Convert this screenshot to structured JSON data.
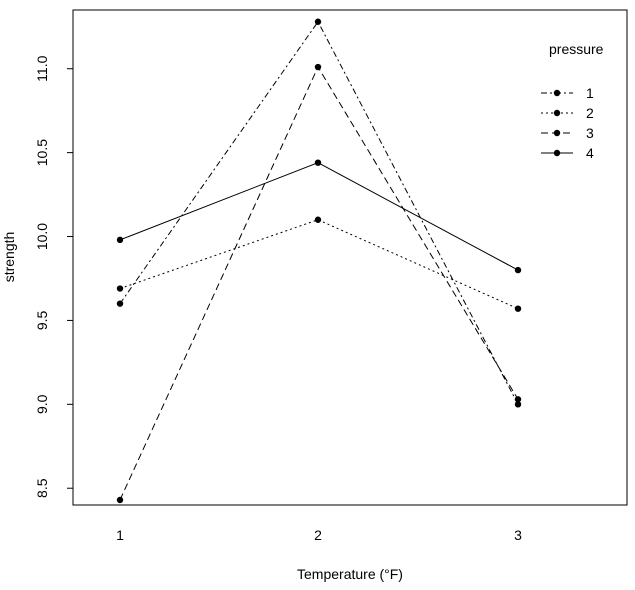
{
  "chart_data": {
    "type": "line",
    "title": "",
    "xlabel": "Temperature (°F)",
    "ylabel": "strength",
    "categories": [
      "1",
      "2",
      "3"
    ],
    "ylim": [
      8.4,
      11.35
    ],
    "yticks": [
      "8.5",
      "9.0",
      "9.5",
      "10.0",
      "10.5",
      "11.0"
    ],
    "legend": {
      "title": "pressure",
      "position": "top-right",
      "entries": [
        "1",
        "2",
        "3",
        "4"
      ]
    },
    "series": [
      {
        "name": "1",
        "values": [
          9.6,
          11.28,
          9.0
        ],
        "dash": "6,3,2,3"
      },
      {
        "name": "2",
        "values": [
          9.69,
          10.1,
          9.57
        ],
        "dash": "2,3"
      },
      {
        "name": "3",
        "values": [
          8.43,
          11.01,
          9.03
        ],
        "dash": "7,4"
      },
      {
        "name": "4",
        "values": [
          9.98,
          10.44,
          9.8
        ],
        "dash": ""
      }
    ],
    "grid": false
  }
}
